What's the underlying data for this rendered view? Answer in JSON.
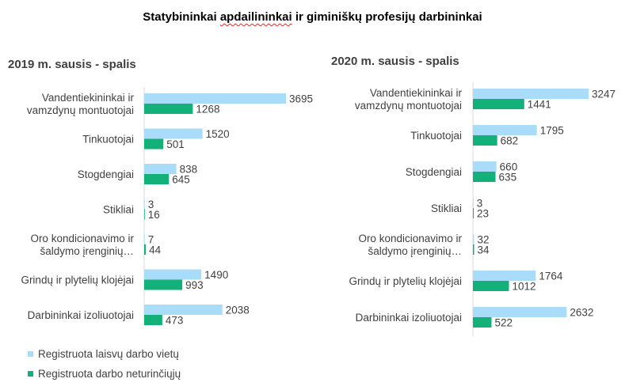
{
  "title_parts": [
    "Statybininkai ",
    "apdailininkai",
    " ir giminiškų profesijų darbininkai"
  ],
  "legend": [
    {
      "label": "Registruota laisvų darbo vietų",
      "color": "#a9dcf8"
    },
    {
      "label": "Registruota darbo neturinčiųjų",
      "color": "#14b07a"
    }
  ],
  "chart_data": [
    {
      "type": "bar",
      "orientation": "horizontal",
      "subtitle": "2019 m. sausis - spalis",
      "categories": [
        [
          "Vandentiekininkai ir",
          "vamzdynų montuotojai"
        ],
        [
          "Tinkuotojai"
        ],
        [
          "Stogdengiai"
        ],
        [
          "Stikliai"
        ],
        [
          "Oro kondicionavimo ir",
          "šaldymo įrenginių…"
        ],
        [
          "Grindų ir plytelių klojėjai"
        ],
        [
          "Darbininkai izoliuotojai"
        ]
      ],
      "series": [
        {
          "name": "Registruota laisvų darbo vietų",
          "values": [
            3695,
            1520,
            838,
            3,
            7,
            1490,
            2038
          ]
        },
        {
          "name": "Registruota darbo neturinčiųjų",
          "values": [
            1268,
            501,
            645,
            16,
            44,
            993,
            473
          ]
        }
      ]
    },
    {
      "type": "bar",
      "orientation": "horizontal",
      "subtitle": "2020 m. sausis - spalis",
      "categories": [
        [
          "Vandentiekininkai ir",
          "vamzdynų montuotojai"
        ],
        [
          "Tinkuotojai"
        ],
        [
          "Stogdengiai"
        ],
        [
          "Stikliai"
        ],
        [
          "Oro kondicionavimo ir",
          "šaldymo įrenginių…"
        ],
        [
          "Grindų ir plytelių klojėjai"
        ],
        [
          "Darbininkai izoliuotojai"
        ]
      ],
      "series": [
        {
          "name": "Registruota laisvų darbo vietų",
          "values": [
            3247,
            1795,
            660,
            3,
            32,
            1764,
            2632
          ]
        },
        {
          "name": "Registruota darbo neturinčiųjų",
          "values": [
            1441,
            682,
            635,
            23,
            34,
            1012,
            522
          ]
        }
      ]
    }
  ]
}
